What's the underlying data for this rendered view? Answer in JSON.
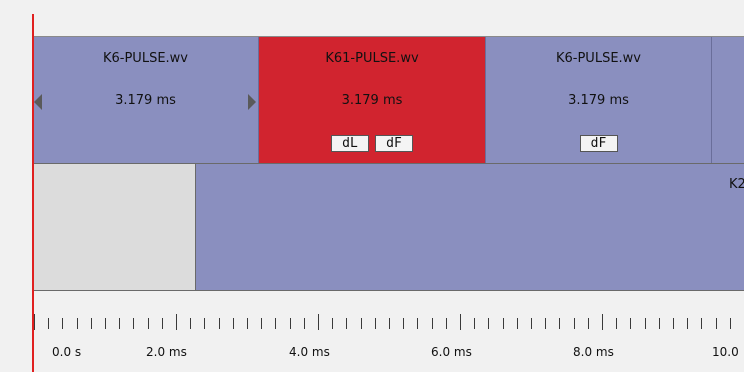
{
  "track1": {
    "segments": [
      {
        "name": "K6-PULSE.wv",
        "duration": "3.179 ms",
        "color": "#8a8fbf",
        "buttons": [],
        "arrows": true
      },
      {
        "name": "K61-PULSE.wv",
        "duration": "3.179 ms",
        "color": "#d1242f",
        "buttons": [
          "dL",
          "dF"
        ],
        "arrows": false
      },
      {
        "name": "K6-PULSE.wv",
        "duration": "3.179 ms",
        "color": "#8a8fbf",
        "buttons": [
          "dF"
        ],
        "arrows": false
      },
      {
        "name": "",
        "duration": "",
        "color": "#8a8fbf",
        "buttons": [],
        "arrows": false
      }
    ]
  },
  "track2": {
    "segment_label": "K2"
  },
  "ruler": {
    "labels": [
      "0.0  s",
      "2.0 ms",
      "4.0 ms",
      "6.0 ms",
      "8.0 ms",
      "10.0"
    ]
  },
  "colors": {
    "segment_blue": "#8a8fbf",
    "segment_selected": "#d1242f",
    "playhead": "#e02020"
  }
}
